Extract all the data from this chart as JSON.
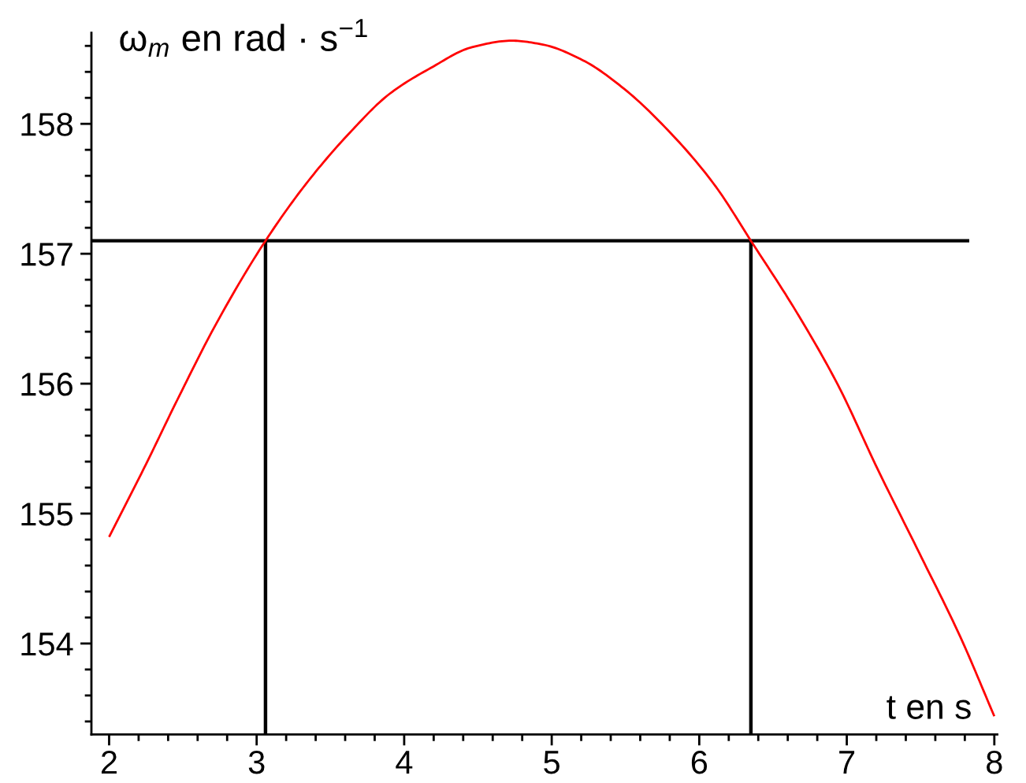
{
  "chart_data": {
    "type": "line",
    "xlabel": "t en s",
    "ylabel": "ω$_{m}$ en rad · s$^{−1}$",
    "line_style": "solid",
    "xlim": [
      1.88,
      8.02
    ],
    "ylim": [
      153.3,
      158.7
    ],
    "xticks": [
      2,
      {
        "value": 2.2,
        "label": null
      },
      {
        "value": 2.4,
        "label": null
      },
      {
        "value": 2.6,
        "label": null
      },
      {
        "value": 2.8,
        "label": null
      },
      3,
      {
        "value": 3.2,
        "label": null
      },
      {
        "value": 3.4,
        "label": null
      },
      {
        "value": 3.6,
        "label": null
      },
      {
        "value": 3.8,
        "label": null
      },
      4,
      {
        "value": 4.2,
        "label": null
      },
      {
        "value": 4.4,
        "label": null
      },
      {
        "value": 4.6,
        "label": null
      },
      {
        "value": 4.8,
        "label": null
      },
      5,
      {
        "value": 5.2,
        "label": null
      },
      {
        "value": 5.4,
        "label": null
      },
      {
        "value": 5.6,
        "label": null
      },
      {
        "value": 5.8,
        "label": null
      },
      6,
      {
        "value": 6.2,
        "label": null
      },
      {
        "value": 6.4,
        "label": null
      },
      {
        "value": 6.6,
        "label": null
      },
      {
        "value": 6.8,
        "label": null
      },
      7,
      {
        "value": 7.2,
        "label": null
      },
      {
        "value": 7.4,
        "label": null
      },
      {
        "value": 7.6,
        "label": null
      },
      {
        "value": 7.8,
        "label": null
      },
      8
    ],
    "yticks": [
      {
        "value": 153.4,
        "label": null
      },
      {
        "value": 153.6,
        "label": null
      },
      {
        "value": 153.8,
        "label": null
      },
      154,
      {
        "value": 154.2,
        "label": null
      },
      {
        "value": 154.4,
        "label": null
      },
      {
        "value": 154.6,
        "label": null
      },
      {
        "value": 154.8,
        "label": null
      },
      155,
      {
        "value": 155.2,
        "label": null
      },
      {
        "value": 155.4,
        "label": null
      },
      {
        "value": 155.6,
        "label": null
      },
      {
        "value": 155.8,
        "label": null
      },
      156,
      {
        "value": 156.2,
        "label": null
      },
      {
        "value": 156.4,
        "label": null
      },
      {
        "value": 156.6,
        "label": null
      },
      {
        "value": 156.8,
        "label": null
      },
      157,
      {
        "value": 157.2,
        "label": null
      },
      {
        "value": 157.4,
        "label": null
      },
      {
        "value": 157.6,
        "label": null
      },
      {
        "value": 157.8,
        "label": null
      },
      158,
      {
        "value": 158.2,
        "label": null
      },
      {
        "value": 158.4,
        "label": null
      },
      {
        "value": 158.6,
        "label": null
      }
    ],
    "series": [
      {
        "color": "#ff0000",
        "x": [
          2.0,
          2.25,
          2.46,
          2.73,
          3.06,
          3.35,
          3.63,
          3.9,
          4.18,
          4.46,
          4.73,
          4.94,
          5.21,
          5.49,
          5.83,
          6.11,
          6.35,
          6.66,
          6.94,
          7.21,
          7.49,
          7.77,
          8.0
        ],
        "values": [
          154.82,
          155.38,
          155.87,
          156.47,
          157.1,
          157.56,
          157.93,
          158.23,
          158.43,
          158.59,
          158.64,
          158.61,
          158.49,
          158.27,
          157.9,
          157.52,
          157.1,
          156.55,
          155.99,
          155.34,
          154.7,
          154.05,
          153.44
        ]
      },
      {
        "color": "#000000",
        "x": [
          1.88,
          7.83
        ],
        "values": [
          157.1,
          157.1
        ]
      },
      {
        "color": "#000000",
        "x": [
          3.06,
          3.06
        ],
        "values": [
          153.3,
          157.1
        ]
      },
      {
        "color": "#000000",
        "x": [
          6.35,
          6.35
        ],
        "values": [
          153.3,
          157.1
        ]
      }
    ]
  }
}
